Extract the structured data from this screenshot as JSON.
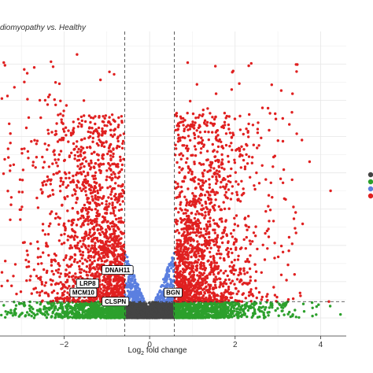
{
  "chart_data": {
    "type": "scatter",
    "subtitle": "diomyopathy vs. Healthy",
    "xlabel_main": "Log",
    "xlabel_sub": "2",
    "xlabel_rest": " fold change",
    "ylabel": "",
    "x_ticks": [
      -2,
      0,
      2,
      4
    ],
    "xlim": [
      -3.5,
      4.6
    ],
    "ylim": [
      -0.5,
      7.9
    ],
    "grid": true,
    "fc_threshold": [
      -0.58,
      0.58
    ],
    "p_threshold_y": 0.45,
    "colors": {
      "ns": "#444444",
      "log2fc_only": "#2ca02c",
      "p_only": "#5b7fe0",
      "both": "#e02020",
      "grid": "#e6e6e6",
      "panel": "#ffffff"
    },
    "labeled_genes": [
      {
        "label": "DNAH11",
        "x": -0.75,
        "y": 1.32
      },
      {
        "label": "LRP8",
        "x": -1.45,
        "y": 0.95
      },
      {
        "label": "MCM10",
        "x": -1.55,
        "y": 0.7
      },
      {
        "label": "CLSPN",
        "x": -0.8,
        "y": 0.45
      },
      {
        "label": "BGN",
        "x": 0.55,
        "y": 0.7
      }
    ],
    "legend_swatch_colors": [
      "#444444",
      "#2ca02c",
      "#5b7fe0",
      "#e02020"
    ]
  }
}
